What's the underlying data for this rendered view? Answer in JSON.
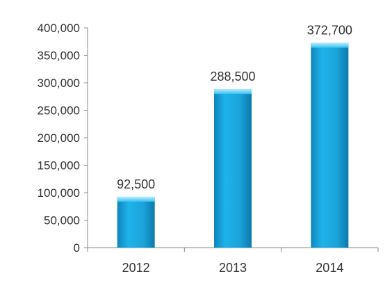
{
  "chart_data": {
    "type": "bar",
    "categories": [
      "2012",
      "2013",
      "2014"
    ],
    "values": [
      92500,
      288500,
      372700
    ],
    "data_labels": [
      "92,500",
      "288,500",
      "372,700"
    ],
    "y_ticks": [
      0,
      50000,
      100000,
      150000,
      200000,
      250000,
      300000,
      350000,
      400000
    ],
    "y_tick_labels": [
      "0",
      "50,000",
      "100,000",
      "150,000",
      "200,000",
      "250,000",
      "300,000",
      "350,000",
      "400,000"
    ],
    "ylim": [
      0,
      400000
    ],
    "grid": false,
    "legend": "none",
    "colors": {
      "bar": "#1aa3d9",
      "bar_top": "#7ad8f7",
      "axis": "#888888"
    }
  }
}
